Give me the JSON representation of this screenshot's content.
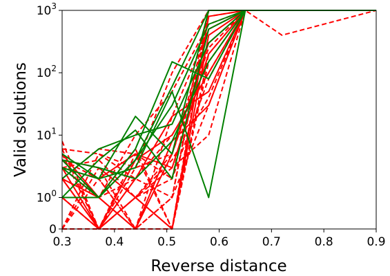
{
  "chart_data": {
    "type": "line",
    "xlabel": "Reverse distance",
    "ylabel": "Valid solutions",
    "xlim": [
      0.3,
      0.9
    ],
    "y_scale": "symlog",
    "ylim": [
      0,
      1000
    ],
    "x_ticks": [
      {
        "value": 0.3,
        "label": "0.3"
      },
      {
        "value": 0.4,
        "label": "0.4"
      },
      {
        "value": 0.5,
        "label": "0.5"
      },
      {
        "value": 0.6,
        "label": "0.6"
      },
      {
        "value": 0.7,
        "label": "0.7"
      },
      {
        "value": 0.8,
        "label": "0.8"
      },
      {
        "value": 0.9,
        "label": "0.9"
      }
    ],
    "y_ticks": [
      {
        "value": 0,
        "base": "0",
        "exp": ""
      },
      {
        "value": 1,
        "base": "10",
        "exp": "0"
      },
      {
        "value": 10,
        "base": "10",
        "exp": "1"
      },
      {
        "value": 100,
        "base": "10",
        "exp": "2"
      },
      {
        "value": 1000,
        "base": "10",
        "exp": "3"
      }
    ],
    "grid": false,
    "colors": {
      "solid": "#008000",
      "dashed": "#ff0000"
    },
    "series": [
      {
        "style": "solid",
        "color": "#008000",
        "x": [
          0.3,
          0.37,
          0.44,
          0.51,
          0.58,
          0.65,
          0.9
        ],
        "y": [
          4,
          1,
          4,
          30,
          600,
          1000,
          1000
        ]
      },
      {
        "style": "solid",
        "color": "#008000",
        "x": [
          0.3,
          0.37,
          0.44,
          0.51,
          0.58,
          0.65,
          0.9
        ],
        "y": [
          1,
          1,
          6,
          150,
          80,
          1000,
          1000
        ]
      },
      {
        "style": "solid",
        "color": "#008000",
        "x": [
          0.3,
          0.37,
          0.44,
          0.51,
          0.58,
          0.65,
          0.9
        ],
        "y": [
          3,
          2,
          20,
          5,
          1000,
          1000,
          1000
        ]
      },
      {
        "style": "solid",
        "color": "#008000",
        "x": [
          0.3,
          0.37,
          0.44,
          0.51,
          0.58,
          0.65,
          0.9
        ],
        "y": [
          5,
          2,
          3,
          50,
          1,
          1000,
          1000
        ]
      },
      {
        "style": "solid",
        "color": "#008000",
        "x": [
          0.3,
          0.37,
          0.44,
          0.51,
          0.58,
          0.65,
          0.9
        ],
        "y": [
          2,
          6,
          10,
          15,
          300,
          1000,
          1000
        ]
      },
      {
        "style": "solid",
        "color": "#008000",
        "x": [
          0.3,
          0.37,
          0.44,
          0.51,
          0.58,
          0.65,
          0.9
        ],
        "y": [
          3,
          1,
          4,
          60,
          1000,
          1000,
          1000
        ]
      },
      {
        "style": "solid",
        "color": "#008000",
        "x": [
          0.3,
          0.37,
          0.44,
          0.51,
          0.58,
          0.65,
          0.9
        ],
        "y": [
          4,
          3,
          2,
          8,
          150,
          1000,
          1000
        ]
      },
      {
        "style": "solid",
        "color": "#008000",
        "x": [
          0.3,
          0.37,
          0.44,
          0.51,
          0.58,
          0.65,
          0.9
        ],
        "y": [
          1,
          4,
          12,
          2,
          500,
          1000,
          1000
        ]
      },
      {
        "style": "solid",
        "color": "#ff0000",
        "x": [
          0.3,
          0.37,
          0.44,
          0.51,
          0.58,
          0.65,
          0.9
        ],
        "y": [
          3,
          0,
          4,
          10,
          100,
          1000,
          1000
        ]
      },
      {
        "style": "solid",
        "color": "#ff0000",
        "x": [
          0.3,
          0.37,
          0.44,
          0.51,
          0.58,
          0.65,
          0.9
        ],
        "y": [
          2,
          1,
          0,
          5,
          300,
          1000,
          1000
        ]
      },
      {
        "style": "solid",
        "color": "#ff0000",
        "x": [
          0.3,
          0.37,
          0.44,
          0.51,
          0.58,
          0.65,
          0.9
        ],
        "y": [
          4,
          3,
          1,
          0,
          800,
          1000,
          1000
        ]
      },
      {
        "style": "solid",
        "color": "#ff0000",
        "x": [
          0.3,
          0.37,
          0.44,
          0.51,
          0.58,
          0.65,
          0.9
        ],
        "y": [
          1,
          0,
          2,
          20,
          50,
          1000,
          1000
        ]
      },
      {
        "style": "solid",
        "color": "#ff0000",
        "x": [
          0.3,
          0.37,
          0.44,
          0.51,
          0.58,
          0.65,
          0.9
        ],
        "y": [
          3,
          2,
          5,
          3,
          200,
          1000,
          1000
        ]
      },
      {
        "style": "solid",
        "color": "#ff0000",
        "x": [
          0.3,
          0.37,
          0.44,
          0.51,
          0.58,
          0.65,
          0.9
        ],
        "y": [
          2,
          0,
          1,
          0,
          400,
          1000,
          1000
        ]
      },
      {
        "style": "solid",
        "color": "#ff0000",
        "x": [
          0.3,
          0.37,
          0.44,
          0.51,
          0.58,
          0.65,
          0.9
        ],
        "y": [
          5,
          1,
          0,
          8,
          30,
          1000,
          1000
        ]
      },
      {
        "style": "dashed",
        "color": "#ff0000",
        "x": [
          0.3,
          0.37,
          0.44,
          0.51,
          0.58,
          0.65,
          0.9
        ],
        "y": [
          8,
          0,
          0,
          0,
          1000,
          1000,
          1000
        ]
      },
      {
        "style": "dashed",
        "color": "#ff0000",
        "x": [
          0.3,
          0.37,
          0.44,
          0.51,
          0.58,
          0.65,
          0.72,
          0.9
        ],
        "y": [
          6,
          5,
          3,
          100,
          1000,
          1000,
          400,
          1000
        ]
      },
      {
        "style": "dashed",
        "color": "#ff0000",
        "x": [
          0.3,
          0.37,
          0.44,
          0.51,
          0.58,
          0.65,
          0.9
        ],
        "y": [
          0,
          0,
          1,
          5,
          500,
          1000,
          1000
        ]
      },
      {
        "style": "dashed",
        "color": "#ff0000",
        "x": [
          0.3,
          0.37,
          0.44,
          0.51,
          0.58,
          0.65,
          0.9
        ],
        "y": [
          4,
          2,
          0,
          1,
          30,
          1000,
          1000
        ]
      },
      {
        "style": "dashed",
        "color": "#ff0000",
        "x": [
          0.3,
          0.37,
          0.44,
          0.51,
          0.58,
          0.65,
          0.9
        ],
        "y": [
          2,
          6,
          5,
          2,
          1000,
          1000,
          1000
        ]
      },
      {
        "style": "dashed",
        "color": "#ff0000",
        "x": [
          0.3,
          0.37,
          0.44,
          0.51,
          0.58,
          0.65,
          0.9
        ],
        "y": [
          1,
          0,
          5,
          0,
          200,
          1000,
          1000
        ]
      },
      {
        "style": "dashed",
        "color": "#ff0000",
        "x": [
          0.3,
          0.37,
          0.44,
          0.51,
          0.58,
          0.65,
          0.9
        ],
        "y": [
          3,
          1,
          2,
          10,
          100,
          1000,
          1000
        ]
      },
      {
        "style": "dashed",
        "color": "#ff0000",
        "x": [
          0.3,
          0.37,
          0.44,
          0.51,
          0.58,
          0.65,
          0.9
        ],
        "y": [
          0,
          3,
          0,
          1,
          800,
          1000,
          1000
        ]
      },
      {
        "style": "dashed",
        "color": "#ff0000",
        "x": [
          0.3,
          0.37,
          0.44,
          0.51,
          0.58,
          0.65,
          0.9
        ],
        "y": [
          5,
          0,
          1,
          3,
          10,
          1000,
          1000
        ]
      },
      {
        "style": "dashed",
        "color": "#ff0000",
        "x": [
          0.3,
          0.37,
          0.44,
          0.51,
          0.58,
          0.65,
          0.9
        ],
        "y": [
          2,
          1,
          10,
          50,
          600,
          1000,
          1000
        ]
      },
      {
        "style": "dashed",
        "color": "#ff0000",
        "x": [
          0.3,
          0.37,
          0.44,
          0.51,
          0.58,
          0.65,
          0.9
        ],
        "y": [
          0,
          2,
          0,
          0,
          1000,
          1000,
          1000
        ]
      },
      {
        "style": "dashed",
        "color": "#ff0000",
        "x": [
          0.3,
          0.37,
          0.44,
          0.51,
          0.58,
          0.65,
          0.9
        ],
        "y": [
          6,
          0,
          3,
          5,
          250,
          1000,
          1000
        ]
      },
      {
        "style": "dashed",
        "color": "#ff0000",
        "x": [
          0.3,
          0.37,
          0.44,
          0.51,
          0.58,
          0.65,
          0.9
        ],
        "y": [
          3,
          4,
          1,
          2,
          80,
          1000,
          1000
        ]
      },
      {
        "style": "dashed",
        "color": "#ff0000",
        "x": [
          0.3,
          0.37,
          0.44,
          0.51,
          0.58,
          0.65,
          0.9
        ],
        "y": [
          1,
          0,
          0,
          20,
          500,
          1000,
          1000
        ]
      },
      {
        "style": "dashed",
        "color": "#ff0000",
        "x": [
          0.3,
          0.37,
          0.44,
          0.51,
          0.58,
          0.65,
          0.9
        ],
        "y": [
          4,
          1,
          6,
          0,
          150,
          1000,
          1000
        ]
      },
      {
        "style": "dashed",
        "color": "#ff0000",
        "x": [
          0.3,
          0.37,
          0.44,
          0.51,
          0.58,
          0.65,
          0.9
        ],
        "y": [
          0,
          5,
          2,
          1,
          1000,
          1000,
          1000
        ]
      },
      {
        "style": "dashed",
        "color": "#ff0000",
        "x": [
          0.3,
          0.37,
          0.44,
          0.51,
          0.58,
          0.65,
          0.9
        ],
        "y": [
          2,
          0,
          1,
          4,
          40,
          1000,
          1000
        ]
      }
    ]
  }
}
